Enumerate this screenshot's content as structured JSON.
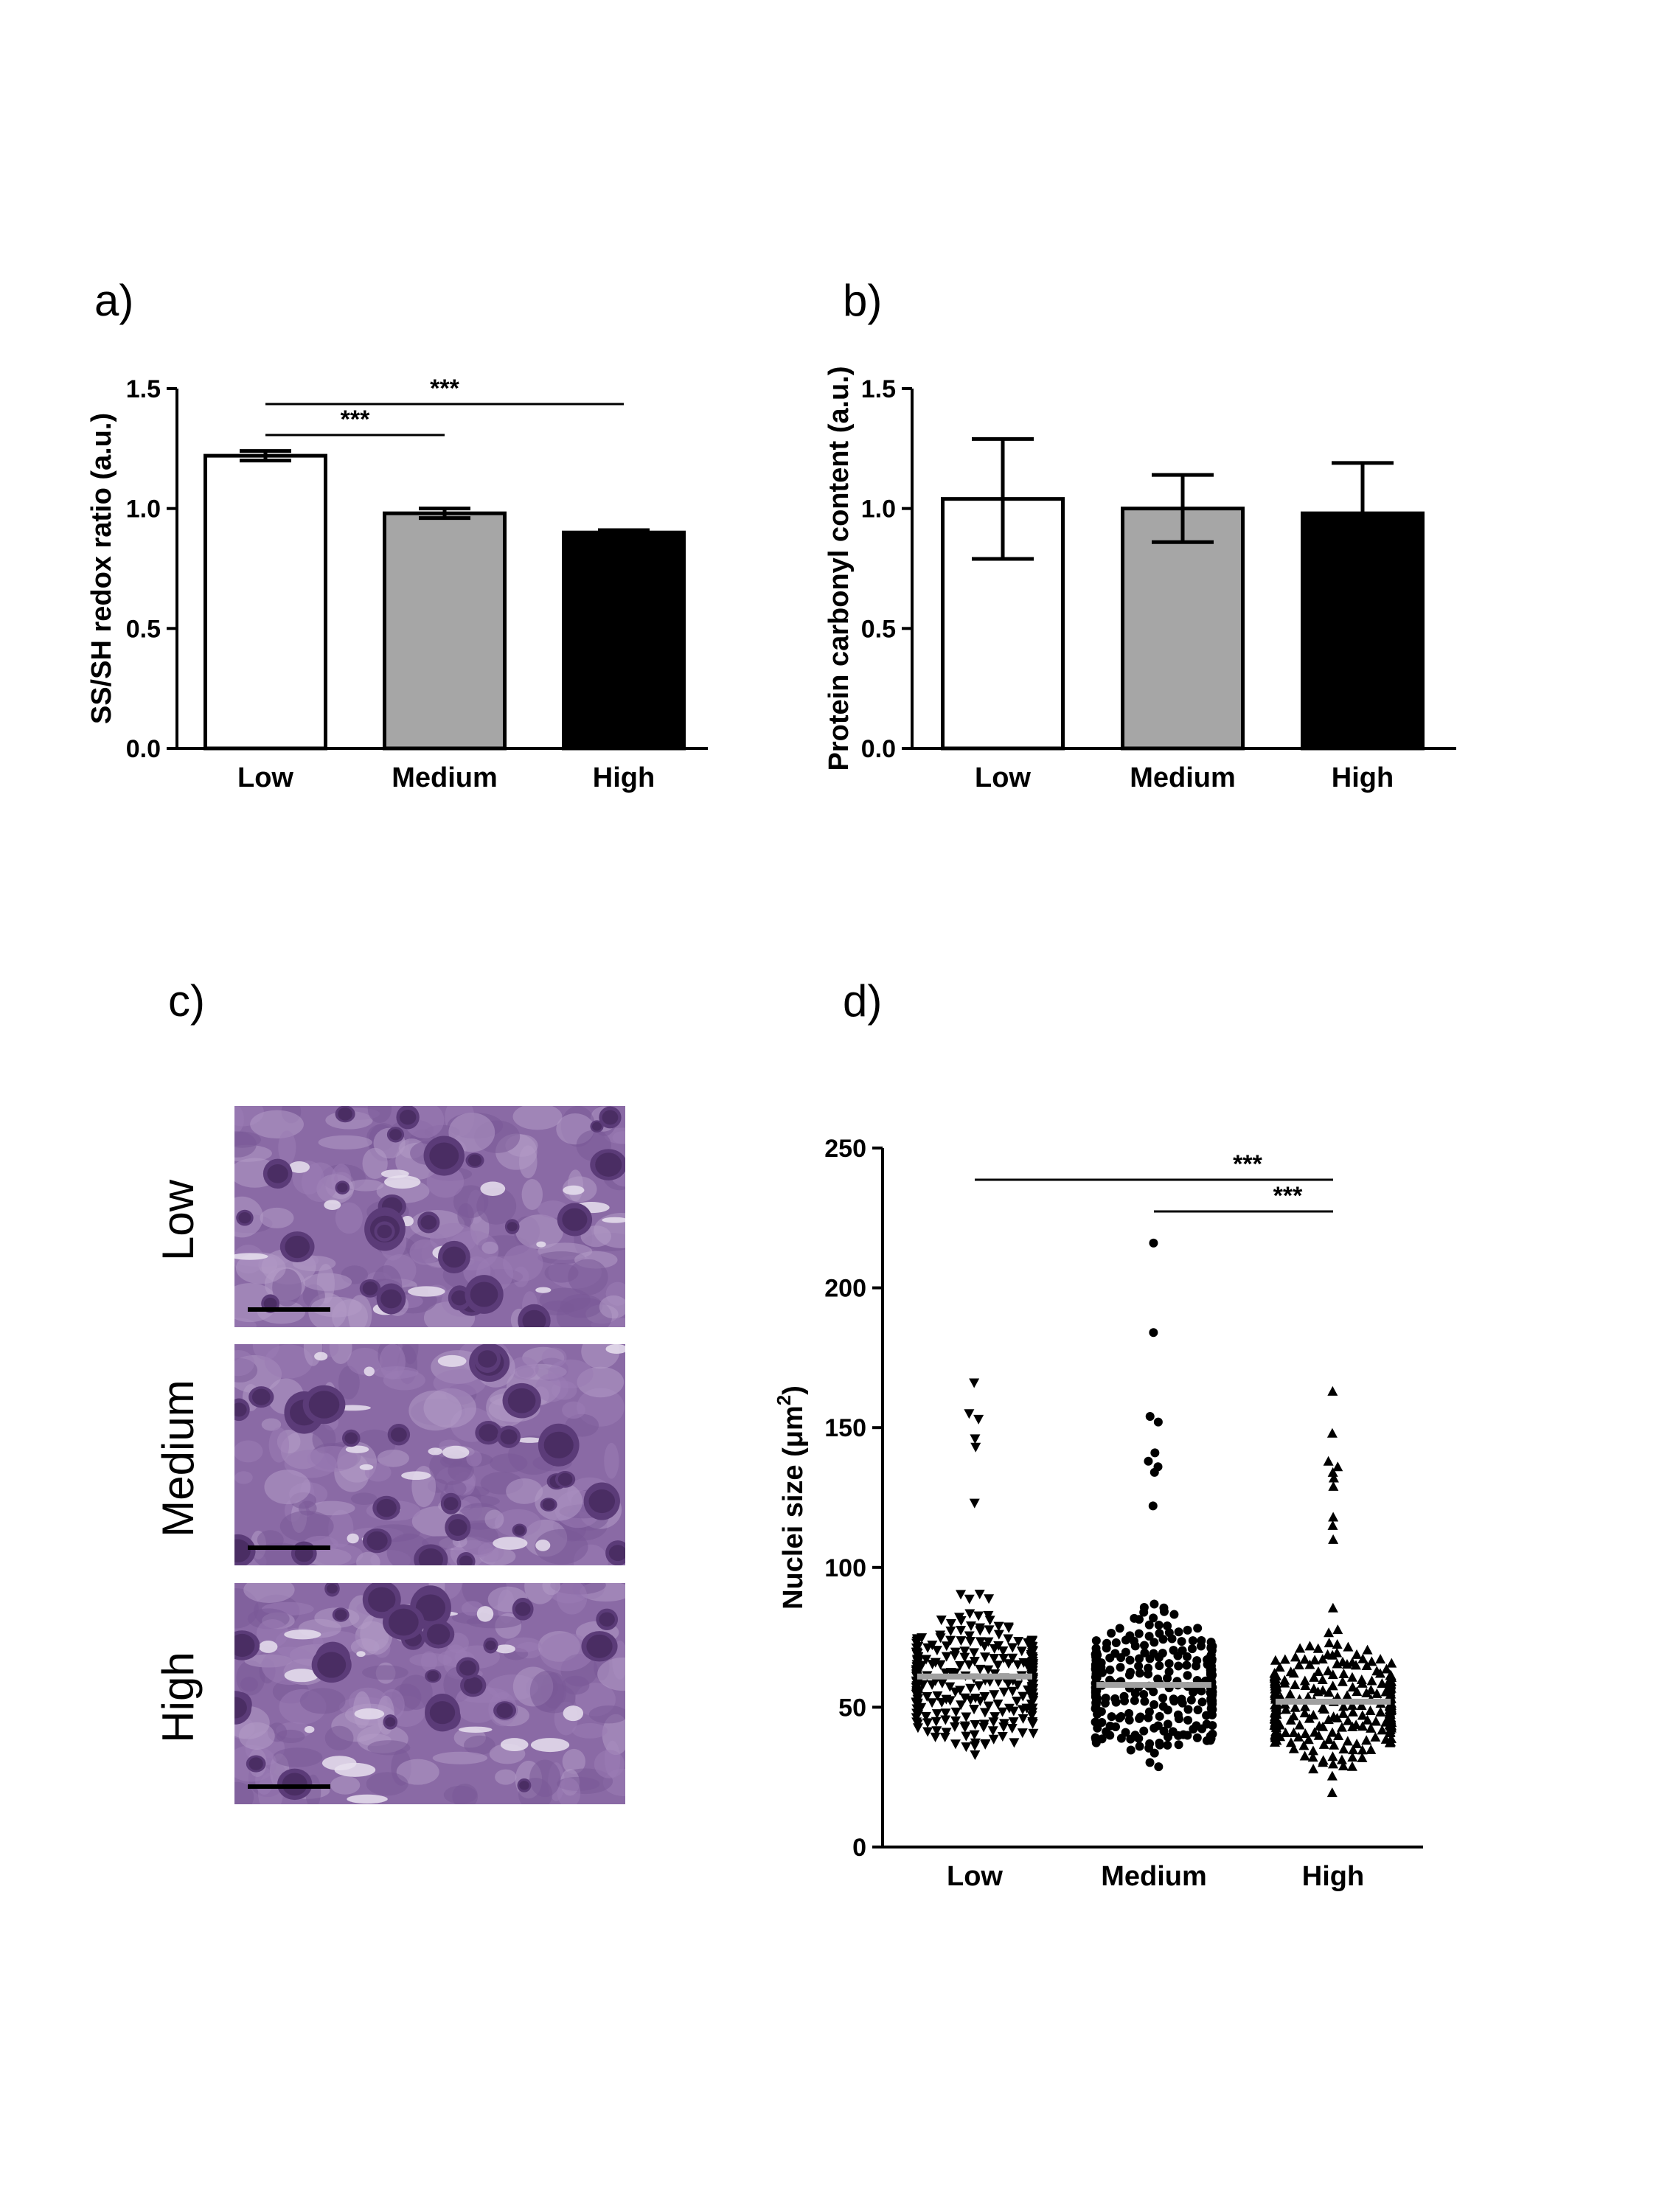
{
  "panels": {
    "a": "a)",
    "b": "b)",
    "c": "c)",
    "d": "d)"
  },
  "colors": {
    "low": "#ffffff",
    "medium": "#a6a6a6",
    "high": "#000000",
    "median_line": "#a0a0a0",
    "tissue": "#8a6aa5",
    "tissue_dark": "#4a2d63",
    "tissue_light": "#e8e0ee"
  },
  "histology": {
    "row_labels": [
      "Low",
      "Medium",
      "High"
    ]
  },
  "chart_data": [
    {
      "id": "a",
      "type": "bar",
      "categories": [
        "Low",
        "Medium",
        "High"
      ],
      "values": [
        1.22,
        0.98,
        0.9
      ],
      "errors": [
        0.02,
        0.02,
        0.01
      ],
      "ylabel": "SS/SH redox ratio (a.u.)",
      "ylim": [
        0,
        1.5
      ],
      "yticks": [
        "0.0",
        "0.5",
        "1.0",
        "1.5"
      ],
      "significance": [
        {
          "from": "Low",
          "to": "Medium",
          "label": "***"
        },
        {
          "from": "Low",
          "to": "High",
          "label": "***"
        }
      ],
      "grid": false
    },
    {
      "id": "b",
      "type": "bar",
      "categories": [
        "Low",
        "Medium",
        "High"
      ],
      "values": [
        1.04,
        1.0,
        0.98
      ],
      "errors": [
        0.25,
        0.14,
        0.21
      ],
      "ylabel": "Protein carbonyl content (a.u.)",
      "ylim": [
        0,
        1.5
      ],
      "yticks": [
        "0.0",
        "0.5",
        "1.0",
        "1.5"
      ],
      "significance": [],
      "grid": false
    },
    {
      "id": "d",
      "type": "scatter",
      "categories": [
        "Low",
        "Medium",
        "High"
      ],
      "ylabel_main": "Nuclei  size (",
      "ylabel_unit": "μm",
      "ylabel_sup": "2",
      "ylabel_end": ")",
      "ylim": [
        0,
        250
      ],
      "yticks": [
        "0",
        "50",
        "100",
        "150",
        "200",
        "250"
      ],
      "medians": [
        61,
        58,
        52
      ],
      "markers": [
        "triangle-down",
        "circle",
        "triangle-up"
      ],
      "n_per_group": 300,
      "ranges": [
        [
          25,
          111
        ],
        [
          19,
          107
        ],
        [
          18,
          97
        ]
      ],
      "outliers": [
        [
          166,
          155,
          153,
          146,
          143,
          123
        ],
        [
          216,
          184,
          154,
          152,
          141,
          138,
          136,
          134,
          122
        ],
        [
          163,
          148,
          138,
          136,
          134,
          132,
          129,
          118,
          115,
          110
        ]
      ],
      "significance": [
        {
          "from": "Low",
          "to": "High",
          "label": "***"
        },
        {
          "from": "Medium",
          "to": "High",
          "label": "***"
        }
      ],
      "grid": false
    }
  ]
}
